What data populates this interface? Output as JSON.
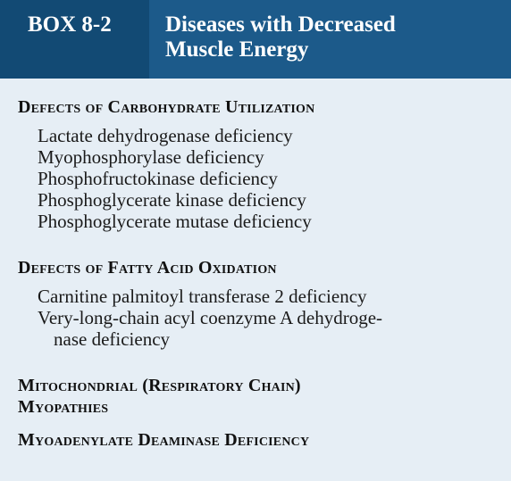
{
  "box": {
    "tag": "BOX 8-2",
    "title_line1": "Diseases with Decreased",
    "title_line2": "Muscle Energy"
  },
  "sections": [
    {
      "heading": "Defects of Carbohydrate Utilization",
      "items": [
        "Lactate dehydrogenase deficiency",
        "Myophosphorylase deficiency",
        "Phosphofructokinase deficiency",
        "Phosphoglycerate kinase deficiency",
        "Phosphoglycerate mutase deficiency"
      ]
    },
    {
      "heading": "Defects of Fatty Acid Oxidation",
      "items": [
        "Carnitine palmitoyl transferase 2 deficiency",
        "Very-long-chain acyl coenzyme A dehydroge-",
        "nase deficiency"
      ]
    },
    {
      "heading_line1": "Mitochondrial (Respiratory Chain)",
      "heading_line2": "Myopathies"
    },
    {
      "heading": "Myoadenylate Deaminase Deficiency"
    }
  ],
  "colors": {
    "header_bg": "#1c5a8a",
    "tag_bg": "#124a74",
    "body_bg": "#e6eef5",
    "header_text": "#ffffff"
  }
}
